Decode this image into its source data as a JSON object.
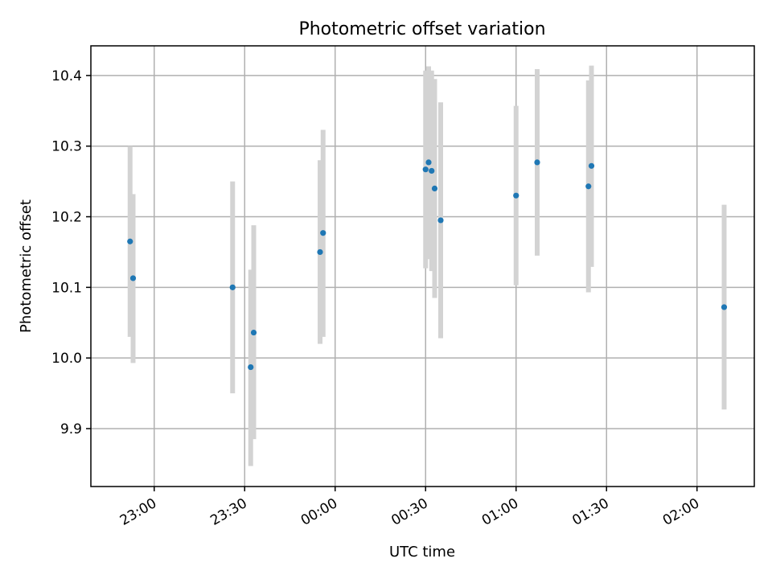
{
  "chart_data": {
    "type": "scatter",
    "title": "Photometric offset variation",
    "xlabel": "UTC time",
    "ylabel": "Photometric offset",
    "x_axis_type": "time",
    "x_ticks": [
      "23:00",
      "23:30",
      "00:00",
      "00:30",
      "01:00",
      "01:30",
      "02:00"
    ],
    "y_ticks": [
      "9.9",
      "10.0",
      "10.1",
      "10.2",
      "10.3",
      "10.4"
    ],
    "grid": true,
    "legend": false,
    "colors": {
      "point": "#1f77b4",
      "errorbar": "#d3d3d3"
    },
    "points": [
      {
        "x": "22:52",
        "y": 10.165,
        "y_low": 10.03,
        "y_high": 10.3
      },
      {
        "x": "22:53",
        "y": 10.113,
        "y_low": 9.993,
        "y_high": 10.232
      },
      {
        "x": "23:26",
        "y": 10.1,
        "y_low": 9.95,
        "y_high": 10.25
      },
      {
        "x": "23:32",
        "y": 9.987,
        "y_low": 9.847,
        "y_high": 10.125
      },
      {
        "x": "23:33",
        "y": 10.036,
        "y_low": 9.885,
        "y_high": 10.188
      },
      {
        "x": "23:55",
        "y": 10.15,
        "y_low": 10.02,
        "y_high": 10.28
      },
      {
        "x": "23:56",
        "y": 10.177,
        "y_low": 10.03,
        "y_high": 10.323
      },
      {
        "x": "00:30",
        "y": 10.267,
        "y_low": 10.127,
        "y_high": 10.407
      },
      {
        "x": "00:31",
        "y": 10.277,
        "y_low": 10.14,
        "y_high": 10.413
      },
      {
        "x": "00:32",
        "y": 10.265,
        "y_low": 10.123,
        "y_high": 10.407
      },
      {
        "x": "00:33",
        "y": 10.24,
        "y_low": 10.085,
        "y_high": 10.395
      },
      {
        "x": "00:35",
        "y": 10.195,
        "y_low": 10.028,
        "y_high": 10.362
      },
      {
        "x": "01:00",
        "y": 10.23,
        "y_low": 10.103,
        "y_high": 10.357
      },
      {
        "x": "01:07",
        "y": 10.277,
        "y_low": 10.145,
        "y_high": 10.409
      },
      {
        "x": "01:24",
        "y": 10.243,
        "y_low": 10.093,
        "y_high": 10.393
      },
      {
        "x": "01:25",
        "y": 10.272,
        "y_low": 10.129,
        "y_high": 10.414
      },
      {
        "x": "02:09",
        "y": 10.072,
        "y_low": 9.927,
        "y_high": 10.217
      }
    ]
  }
}
